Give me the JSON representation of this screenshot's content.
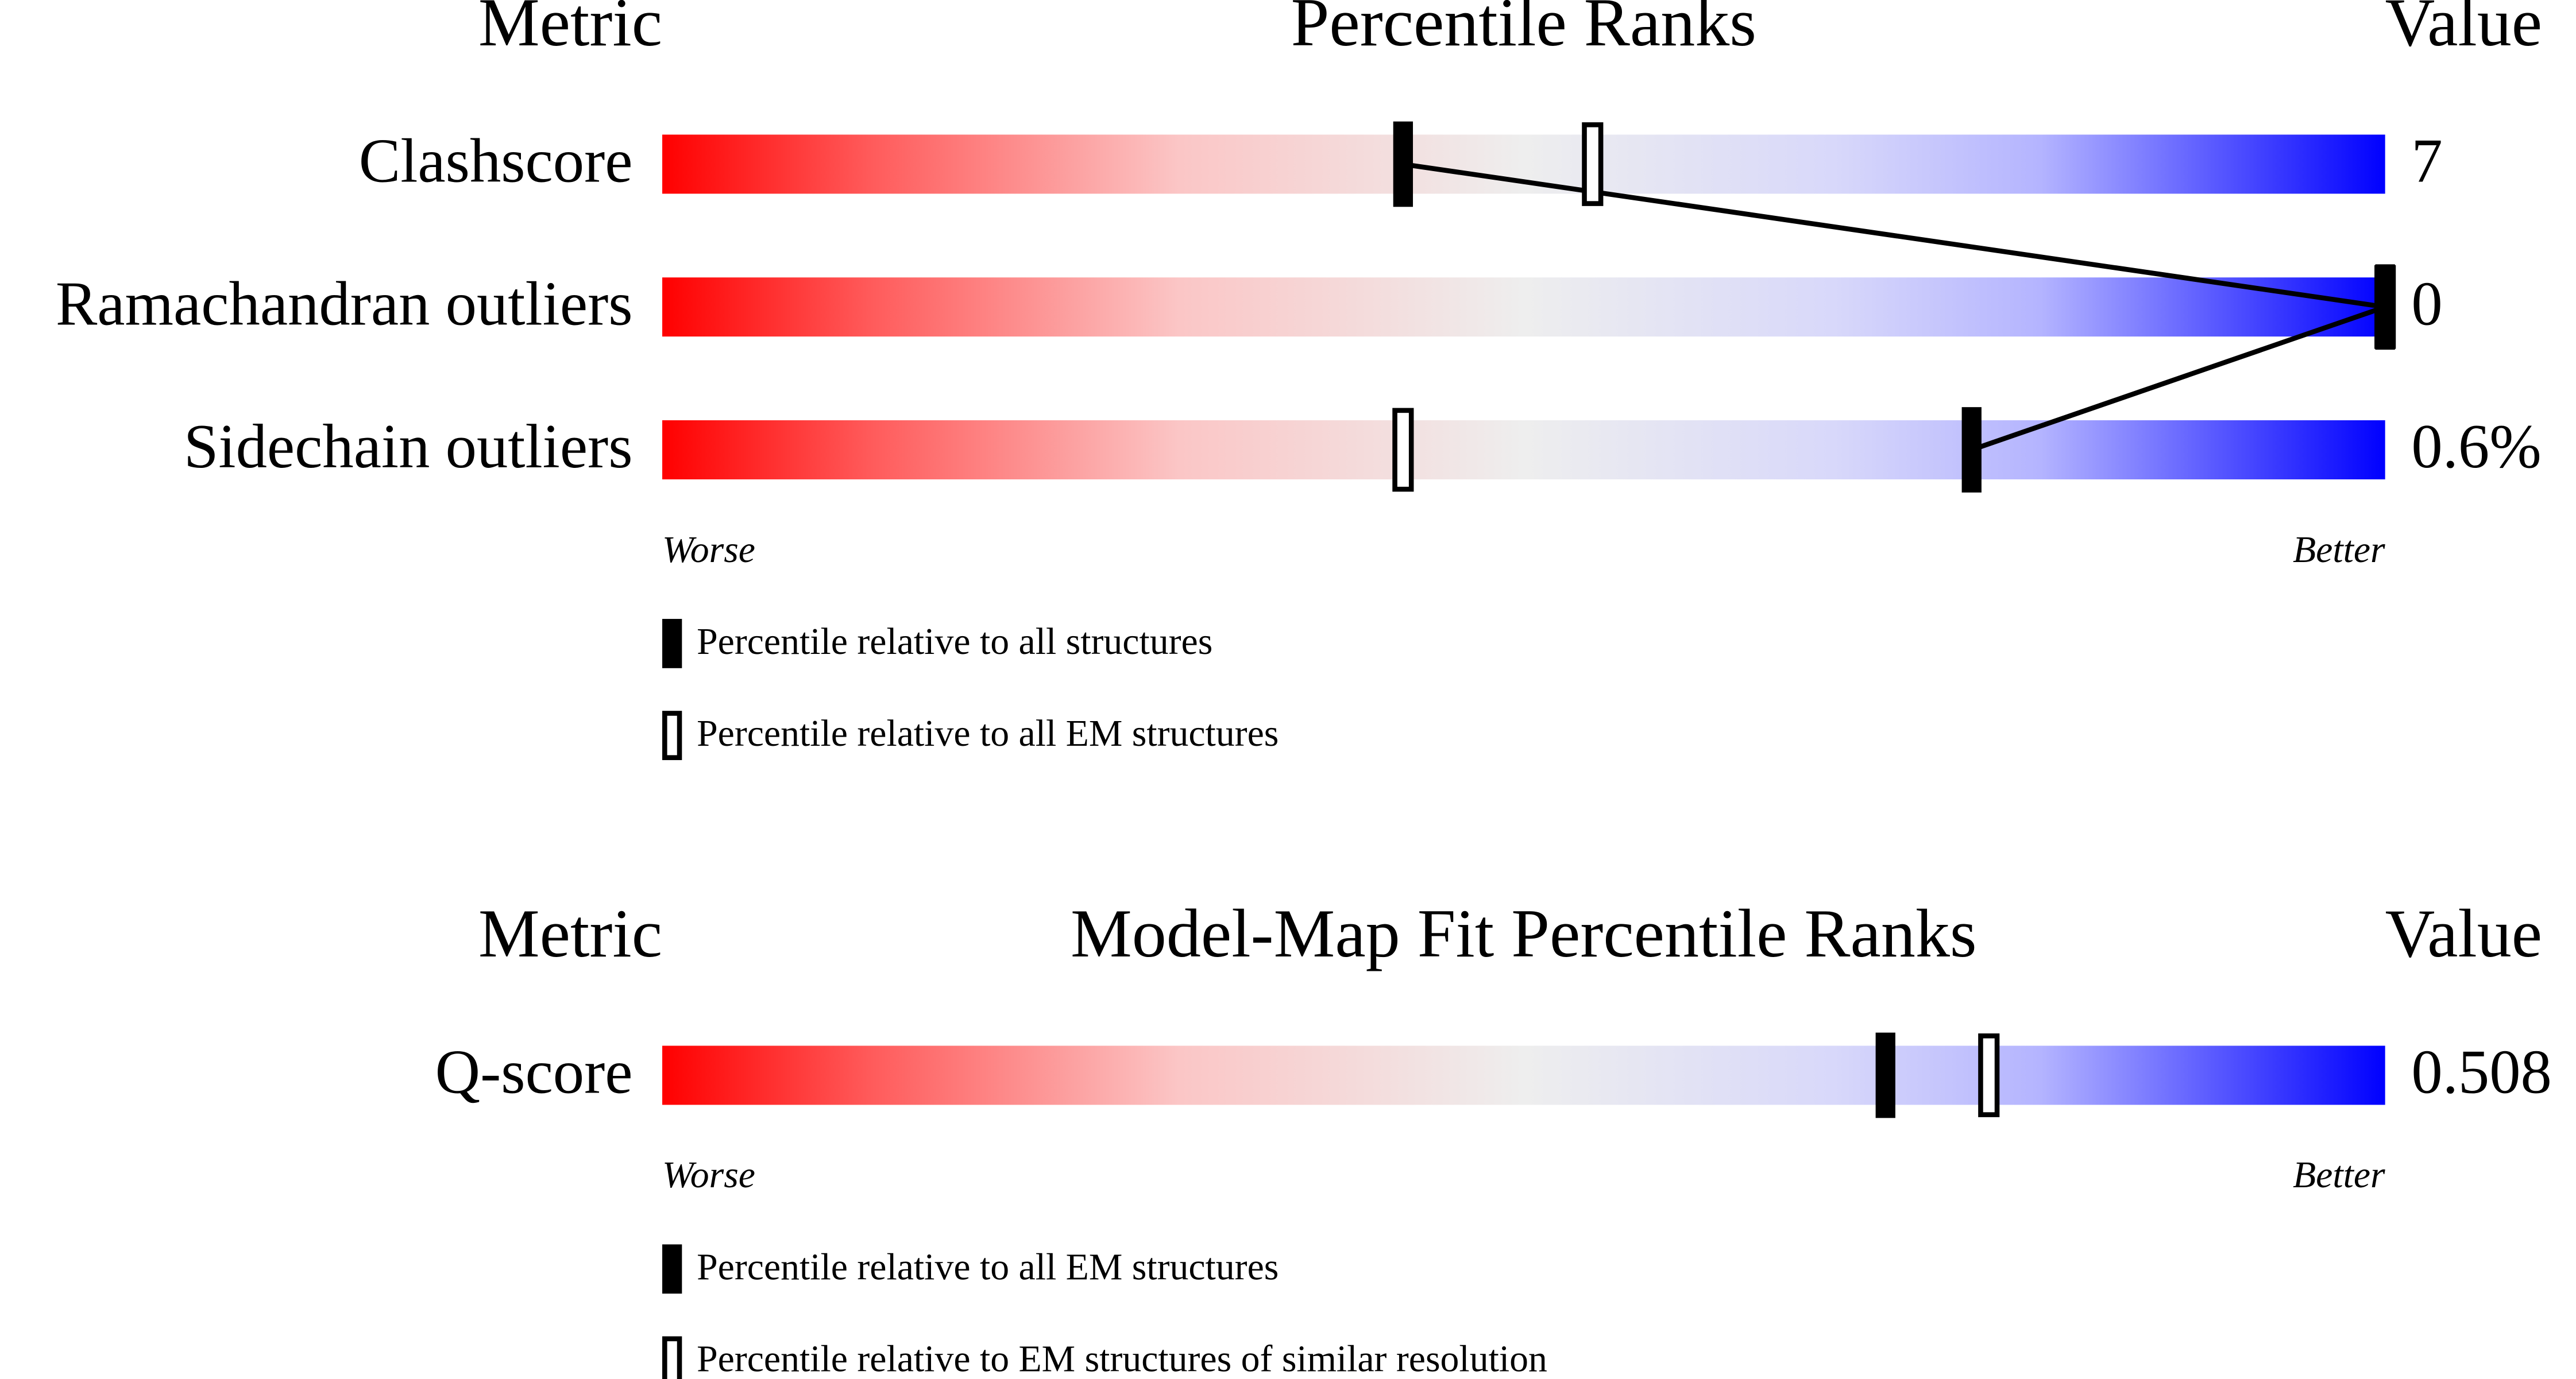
{
  "chart_data": [
    {
      "type": "percentile-slider",
      "metric_header": "Metric",
      "title": "Percentile Ranks",
      "value_header": "Value",
      "categories": [
        "Clashscore",
        "Ramachandran outliers",
        "Sidechain outliers"
      ],
      "value_labels": [
        "7",
        "0",
        "0.6%"
      ],
      "xlim": [
        0,
        100
      ],
      "series": [
        {
          "name": "Percentile relative to all structures",
          "style": "filled",
          "values": [
            43,
            100,
            76
          ]
        },
        {
          "name": "Percentile relative to all EM structures",
          "style": "open",
          "values": [
            54,
            100,
            43
          ]
        }
      ],
      "connect": true,
      "worse_label": "Worse",
      "better_label": "Better"
    },
    {
      "type": "percentile-slider",
      "metric_header": "Metric",
      "title": "Model-Map Fit Percentile Ranks",
      "value_header": "Value",
      "categories": [
        "Q-score"
      ],
      "value_labels": [
        "0.508"
      ],
      "xlim": [
        0,
        100
      ],
      "series": [
        {
          "name": "Percentile relative to all EM structures",
          "style": "filled",
          "values": [
            71
          ]
        },
        {
          "name": "Percentile relative to EM structures of similar resolution",
          "style": "open",
          "values": [
            77
          ]
        }
      ],
      "connect": false,
      "worse_label": "Worse",
      "better_label": "Better"
    }
  ]
}
